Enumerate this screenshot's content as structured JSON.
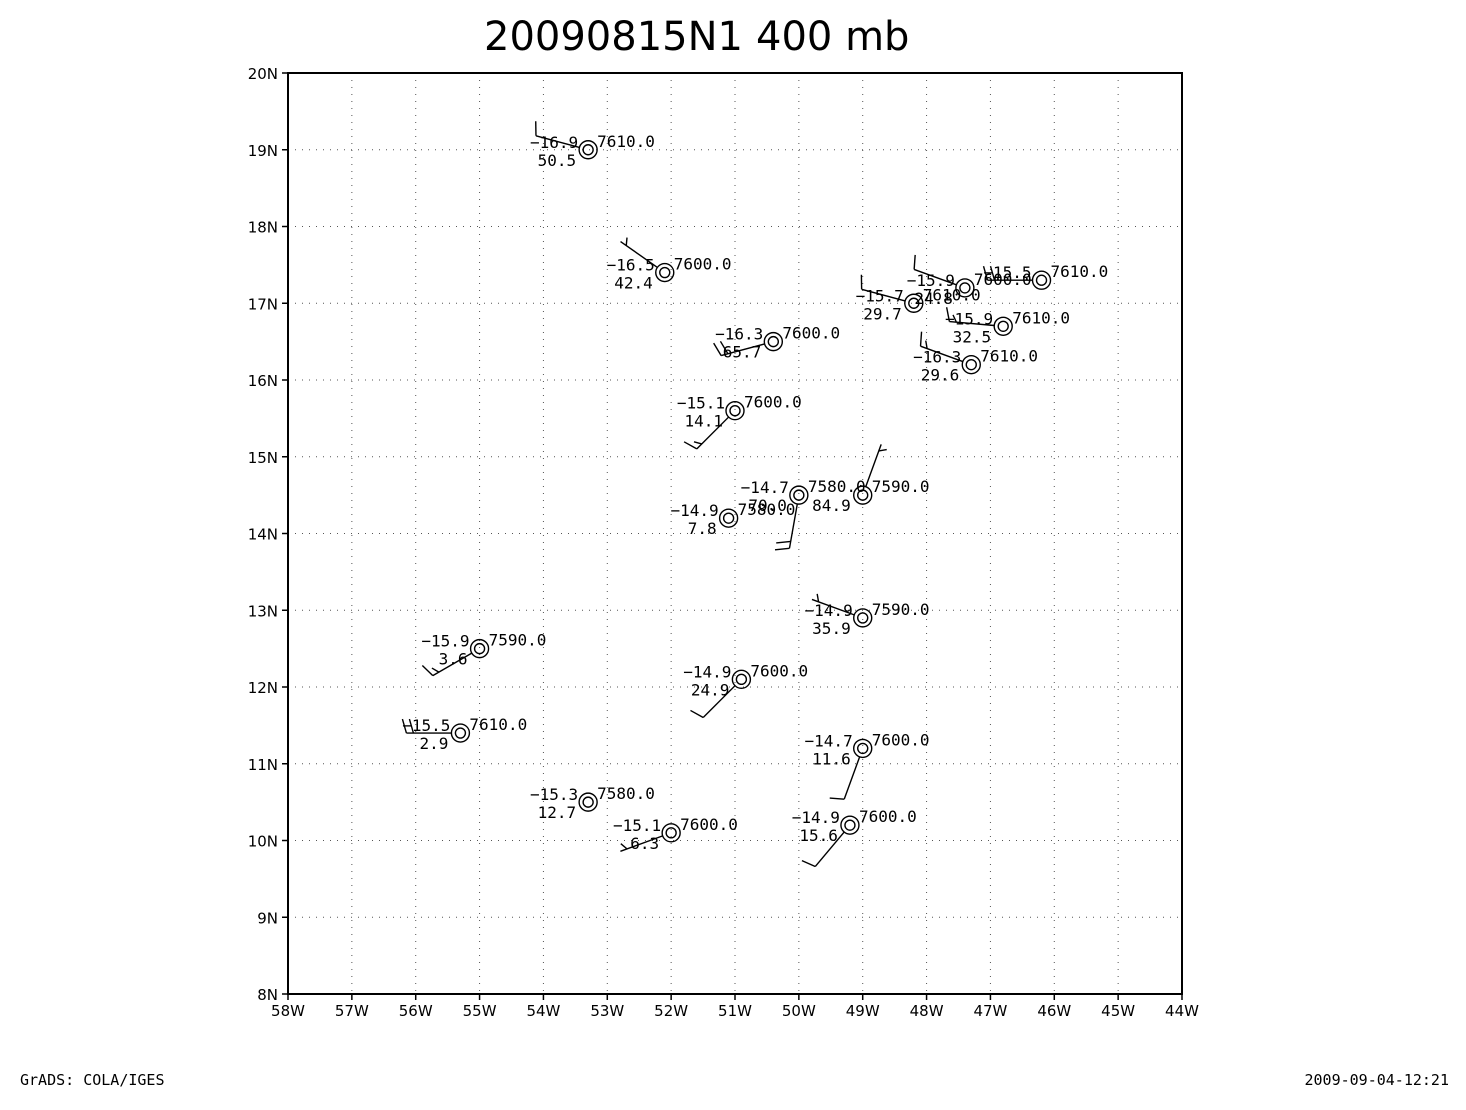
{
  "title": {
    "main": "20090815N1",
    "level": "400  mb"
  },
  "footer": {
    "left": "GrADS: COLA/IGES",
    "right": "2009-09-04-12:21"
  },
  "map_data": {
    "lon_range": [
      -58,
      -44
    ],
    "lat_range": [
      8,
      20
    ],
    "grid": true,
    "x_ticks": [
      "58W",
      "57W",
      "56W",
      "55W",
      "54W",
      "53W",
      "52W",
      "51W",
      "50W",
      "49W",
      "48W",
      "47W",
      "46W",
      "45W",
      "44W"
    ],
    "y_ticks": [
      "8N",
      "9N",
      "10N",
      "11N",
      "12N",
      "13N",
      "14N",
      "15N",
      "16N",
      "17N",
      "18N",
      "19N",
      "20N"
    ],
    "stations": [
      {
        "lon": -53.3,
        "lat": 19.0,
        "temp": "−16.9",
        "rh": "50.5",
        "height": "7610.0",
        "wdir": 285,
        "wspd": 10
      },
      {
        "lon": -52.1,
        "lat": 17.4,
        "temp": "−16.5",
        "rh": "42.4",
        "height": "7600.0",
        "wdir": 305,
        "wspd": 5
      },
      {
        "lon": -50.4,
        "lat": 16.5,
        "temp": "−16.3",
        "rh": "65.7",
        "height": "7600.0",
        "wdir": 255,
        "wspd": 20
      },
      {
        "lon": -51.0,
        "lat": 15.6,
        "temp": "−15.1",
        "rh": "14.1",
        "height": "7600.0",
        "wdir": 225,
        "wspd": 15
      },
      {
        "lon": -50.0,
        "lat": 14.5,
        "temp": "−14.7",
        "rh": "70.0",
        "height": "7580.0",
        "wdir": 190,
        "wspd": 20
      },
      {
        "lon": -49.0,
        "lat": 14.5,
        "temp": "",
        "rh": "84.9",
        "height": "7590.0",
        "wdir": 20,
        "wspd": 5
      },
      {
        "lon": -51.1,
        "lat": 14.2,
        "temp": "−14.9",
        "rh": "7.8",
        "height": "7580.0",
        "wdir": null,
        "wspd": 0
      },
      {
        "lon": -47.4,
        "lat": 17.2,
        "temp": "−15.9",
        "rh": "24.8",
        "height": "7600.0",
        "wdir": 290,
        "wspd": 10
      },
      {
        "lon": -46.2,
        "lat": 17.3,
        "temp": "−15.5",
        "rh": "",
        "height": "7610.0",
        "wdir": 270,
        "wspd": 20
      },
      {
        "lon": -48.2,
        "lat": 17.0,
        "temp": "−15.7",
        "rh": "29.7",
        "height": "7610.0",
        "wdir": 285,
        "wspd": 10
      },
      {
        "lon": -46.8,
        "lat": 16.7,
        "temp": "−15.9",
        "rh": "32.5",
        "height": "7610.0",
        "wdir": 275,
        "wspd": 15
      },
      {
        "lon": -47.3,
        "lat": 16.2,
        "temp": "−16.3",
        "rh": "29.6",
        "height": "7610.0",
        "wdir": 290,
        "wspd": 15
      },
      {
        "lon": -49.0,
        "lat": 12.9,
        "temp": "−14.9",
        "rh": "35.9",
        "height": "7590.0",
        "wdir": 290,
        "wspd": 5
      },
      {
        "lon": -55.0,
        "lat": 12.5,
        "temp": "−15.9",
        "rh": "3.6",
        "height": "7590.0",
        "wdir": 240,
        "wspd": 15
      },
      {
        "lon": -50.9,
        "lat": 12.1,
        "temp": "−14.9",
        "rh": "24.9",
        "height": "7600.0",
        "wdir": 225,
        "wspd": 10
      },
      {
        "lon": -55.3,
        "lat": 11.4,
        "temp": "−15.5",
        "rh": "2.9",
        "height": "7610.0",
        "wdir": 270,
        "wspd": 20
      },
      {
        "lon": -49.0,
        "lat": 11.2,
        "temp": "−14.7",
        "rh": "11.6",
        "height": "7600.0",
        "wdir": 200,
        "wspd": 10
      },
      {
        "lon": -53.3,
        "lat": 10.5,
        "temp": "−15.3",
        "rh": "12.7",
        "height": "7580.0",
        "wdir": null,
        "wspd": 0
      },
      {
        "lon": -52.0,
        "lat": 10.1,
        "temp": "−15.1",
        "rh": "6.3",
        "height": "7600.0",
        "wdir": 250,
        "wspd": 5
      },
      {
        "lon": -49.2,
        "lat": 10.2,
        "temp": "−14.9",
        "rh": "15.6",
        "height": "7600.0",
        "wdir": 220,
        "wspd": 10
      }
    ]
  }
}
